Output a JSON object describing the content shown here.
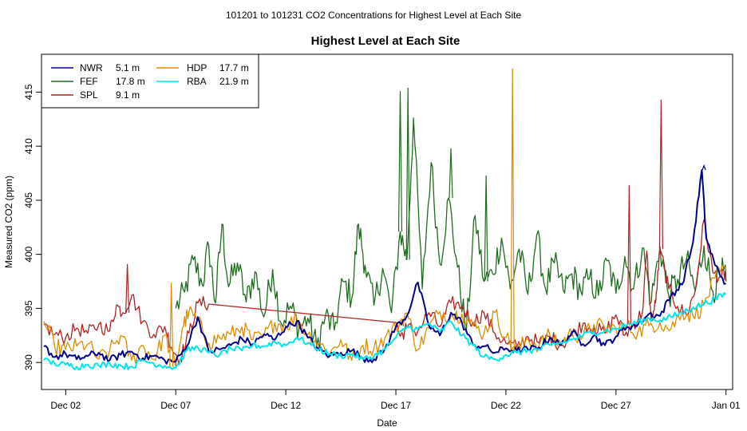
{
  "page_title": "101201  to  101231 CO2 Concentrations for Highest Level at Each Site",
  "chart_data": {
    "type": "line",
    "title": "Highest Level at Each Site",
    "xlabel": "Date",
    "ylabel": "Measured CO2 (ppm)",
    "xlim": [
      -0.1,
      31.3
    ],
    "ylim": [
      387.5,
      418.5
    ],
    "x_ticks": [
      {
        "x": 1,
        "label": "Dec 02"
      },
      {
        "x": 6,
        "label": "Dec 07"
      },
      {
        "x": 11,
        "label": "Dec 12"
      },
      {
        "x": 16,
        "label": "Dec 17"
      },
      {
        "x": 21,
        "label": "Dec 22"
      },
      {
        "x": 26,
        "label": "Dec 27"
      },
      {
        "x": 31,
        "label": "Jan 01"
      }
    ],
    "y_ticks": [
      390,
      395,
      400,
      405,
      410,
      415
    ],
    "legend_position": "top-left",
    "legend": [
      {
        "label": "NWR",
        "height": "5.1 m"
      },
      {
        "label": "FEF",
        "height": "17.8 m"
      },
      {
        "label": "SPL",
        "height": "9.1 m"
      },
      {
        "label": "HDP",
        "height": "17.7 m"
      },
      {
        "label": "RBA",
        "height": "21.9 m"
      }
    ],
    "series": [
      {
        "name": "NWR",
        "color": "#00008b",
        "x": [
          0,
          0.5,
          1,
          1.5,
          2,
          2.5,
          3,
          3.5,
          4,
          4.5,
          5,
          5.5,
          6,
          6.5,
          7,
          7.5,
          8,
          8.5,
          9,
          9.5,
          10,
          10.5,
          11,
          11.5,
          12,
          12.5,
          13,
          13.5,
          14,
          14.5,
          15,
          15.5,
          16,
          16.5,
          17,
          17.5,
          18,
          18.5,
          19,
          19.5,
          20,
          20.5,
          21,
          21.5,
          22,
          22.5,
          23,
          23.5,
          24,
          24.5,
          25,
          25.5,
          26,
          26.5,
          27,
          27.5,
          28,
          28.5,
          29,
          29.5,
          29.9,
          30.1,
          30.5,
          31
        ],
        "values": [
          391.5,
          390.5,
          390.8,
          390.3,
          390.6,
          390.9,
          390.2,
          390.7,
          391,
          390.4,
          390.6,
          390.2,
          390.1,
          391.5,
          394.2,
          391,
          391.2,
          391.6,
          392.2,
          391.7,
          392.6,
          392.1,
          393.3,
          393.8,
          392.3,
          391.2,
          390.6,
          390.9,
          391.1,
          390.4,
          390.3,
          391.2,
          393.3,
          394.3,
          397.4,
          393.4,
          392.5,
          394.6,
          393.7,
          391.6,
          391.5,
          390.9,
          391.3,
          391.1,
          391.2,
          391.4,
          392.3,
          391.6,
          392.8,
          391.7,
          392.5,
          391.6,
          392.4,
          393.3,
          393.5,
          394.5,
          394.3,
          396.2,
          397.2,
          401.1,
          407.8,
          401.5,
          399,
          397.3
        ]
      },
      {
        "name": "FEF",
        "color": "#1e6b1e",
        "x": [
          6,
          6.4,
          6.8,
          7.2,
          7.5,
          7.8,
          8.1,
          8.4,
          8.8,
          9.2,
          9.6,
          10,
          10.4,
          10.8,
          11.2,
          11.6,
          12,
          12.4,
          12.8,
          13.2,
          13.6,
          14,
          14.3,
          14.6,
          15,
          15.4,
          15.8,
          16.2,
          16.5,
          16.8,
          17.2,
          17.6,
          18,
          18.4,
          18.8,
          19.2,
          19.6,
          20,
          20.4,
          20.8,
          21.2,
          21.6,
          22,
          22.4,
          22.8,
          23.2,
          23.6,
          24,
          24.4,
          24.8,
          25.2,
          25.6,
          26,
          26.4,
          26.8,
          27.2,
          27.6,
          28,
          28.4,
          28.8,
          29.2,
          29.6,
          30,
          30.4,
          30.8,
          31
        ],
        "values": [
          395,
          396.5,
          399.5,
          397.2,
          400.8,
          395.5,
          402.8,
          397,
          399.2,
          395.6,
          398.4,
          394.2,
          398.6,
          393.6,
          395.2,
          393.2,
          394.1,
          391.5,
          394.3,
          393,
          397.5,
          396,
          402.8,
          399,
          395.3,
          398.7,
          394.6,
          402.1,
          399.5,
          412.6,
          396.8,
          408.5,
          399.1,
          405.2,
          398.8,
          392.8,
          403.6,
          397.5,
          398.2,
          401.5,
          396.8,
          400.5,
          396.3,
          401.8,
          396.8,
          399.2,
          396.7,
          398.2,
          396.6,
          397.8,
          396.2,
          399.4,
          396.4,
          399.8,
          396.8,
          400.6,
          395.6,
          400.7,
          396.2,
          397.7,
          399.5,
          396.6,
          400.8,
          396.6,
          398.5,
          397.5
        ]
      },
      {
        "name": "SPL",
        "color": "#b22222",
        "x": [
          0,
          0.5,
          1,
          1.5,
          2,
          2.5,
          3,
          3.3,
          3.6,
          4,
          4.5,
          5,
          5.5,
          5.8,
          6.2,
          6.6,
          7,
          7.5,
          16,
          16.2,
          16.5,
          17,
          17.5,
          18,
          18.5,
          19,
          19.5,
          20,
          20.5,
          21,
          21.5,
          22,
          22.5,
          23,
          23.5,
          24,
          24.5,
          25,
          25.5,
          26,
          26.4,
          26.8,
          27.2,
          27.4,
          27.6,
          27.8,
          28,
          28.4,
          28.8,
          29.2,
          29.6,
          30,
          30.4,
          30.8,
          31
        ],
        "values": [
          393.5,
          392.6,
          392.3,
          393.2,
          392.7,
          393.5,
          392.9,
          395.3,
          394.6,
          396.2,
          393.8,
          392.6,
          393.3,
          391.4,
          390.3,
          392.7,
          395.5,
          395.4,
          393.7,
          392.4,
          393.2,
          392.9,
          394.6,
          393.3,
          395.5,
          395.2,
          393.7,
          394.6,
          392.7,
          391.8,
          391.4,
          392.4,
          391.8,
          392.4,
          391.6,
          392.5,
          393.6,
          393.2,
          392.7,
          394.4,
          392.5,
          393.6,
          394.6,
          400.3,
          393.8,
          395.5,
          400.5,
          396.8,
          395.2,
          394.4,
          396.6,
          403.2,
          398.3,
          397.9,
          398.2
        ]
      },
      {
        "name": "HDP",
        "color": "#e08c00",
        "x": [
          0,
          0.5,
          1,
          1.5,
          2,
          2.5,
          3,
          3.5,
          4,
          4.5,
          5,
          5.5,
          6,
          6.3,
          6.6,
          7,
          7.5,
          8,
          8.5,
          9,
          9.5,
          10,
          10.5,
          11,
          11.5,
          12,
          12.5,
          13,
          13.5,
          14,
          14.5,
          15,
          15.5,
          16,
          16.5,
          17,
          17.5,
          18,
          18.5,
          19,
          19.5,
          20,
          20.5,
          21,
          21.5,
          22,
          22.5,
          23,
          23.5,
          24,
          24.5,
          25,
          25.5,
          26,
          26.5,
          27,
          27.5,
          28,
          28.5,
          29,
          29.5,
          30,
          30.5,
          31
        ],
        "values": [
          393.8,
          391.5,
          391.2,
          391.5,
          391.7,
          390.3,
          391.1,
          392.5,
          390.2,
          391.6,
          390.3,
          392.5,
          389.6,
          393.2,
          394.7,
          393.8,
          391.8,
          392.3,
          392.6,
          393.3,
          392.1,
          392.4,
          393.7,
          393.4,
          394.1,
          392.6,
          391.8,
          390.8,
          392.1,
          390.2,
          391.6,
          391.3,
          392.3,
          393.2,
          394.6,
          391.2,
          393.2,
          394.7,
          394.3,
          394.5,
          393.4,
          392.7,
          394.6,
          392.3,
          391.1,
          392.2,
          391.6,
          392.5,
          391.8,
          392.7,
          392.4,
          393.5,
          393.2,
          393.1,
          393.3,
          392.8,
          393.4,
          393.7,
          393.1,
          394.7,
          394.3,
          395.3,
          397.8,
          398.6
        ]
      },
      {
        "name": "RBA",
        "color": "#00e5ee",
        "x": [
          0,
          0.5,
          1,
          1.5,
          2,
          2.5,
          3,
          3.5,
          4,
          4.5,
          5,
          5.5,
          6,
          6.5,
          7,
          7.5,
          8,
          8.5,
          9,
          9.5,
          10,
          10.5,
          11,
          11.5,
          12,
          12.5,
          13,
          13.5,
          14,
          14.5,
          15,
          15.5,
          16,
          16.5,
          17,
          17.5,
          18,
          18.5,
          19,
          19.5,
          20,
          20.5,
          21,
          21.5,
          22,
          22.5,
          23,
          23.5,
          24,
          24.5,
          25,
          25.5,
          26,
          26.5,
          27,
          27.5,
          28,
          28.5,
          29,
          29.5,
          30,
          30.5,
          31
        ],
        "values": [
          390.2,
          389.9,
          389.8,
          389.6,
          389.8,
          389.7,
          389.9,
          389.7,
          389.6,
          390.2,
          389.9,
          389.7,
          389.5,
          391.1,
          391.4,
          390.9,
          390.7,
          391.3,
          391.1,
          391.6,
          391.5,
          391.9,
          391.6,
          392.3,
          391.8,
          391.2,
          390.8,
          390.6,
          390.8,
          390.3,
          390.6,
          391.2,
          392.3,
          393.3,
          393.1,
          393.6,
          392.8,
          393.8,
          392.5,
          391.6,
          390.5,
          390.3,
          390.7,
          390.9,
          391.1,
          391.2,
          391.6,
          391.8,
          392.1,
          392.5,
          392.8,
          392.9,
          393.1,
          393.5,
          393.7,
          394.1,
          393.9,
          394.2,
          394.6,
          395.1,
          395.4,
          395.9,
          396.3
        ]
      }
    ],
    "spikes": [
      {
        "series": "FEF",
        "x": 16.2,
        "value": 415.1
      },
      {
        "series": "FEF",
        "x": 16.55,
        "value": 415.4
      },
      {
        "series": "HDP",
        "x": 21.3,
        "value": 417.2
      },
      {
        "series": "SPL",
        "x": 28.05,
        "value": 414.3
      },
      {
        "series": "FEF",
        "x": 18.5,
        "value": 409.8
      },
      {
        "series": "FEF",
        "x": 20.1,
        "value": 407.3
      },
      {
        "series": "HDP",
        "x": 5.8,
        "value": 397.4
      },
      {
        "series": "SPL",
        "x": 3.8,
        "value": 399.1
      },
      {
        "series": "SPL",
        "x": 26.6,
        "value": 406.4
      },
      {
        "series": "NWR",
        "x": 30.0,
        "value": 408.2
      }
    ]
  }
}
